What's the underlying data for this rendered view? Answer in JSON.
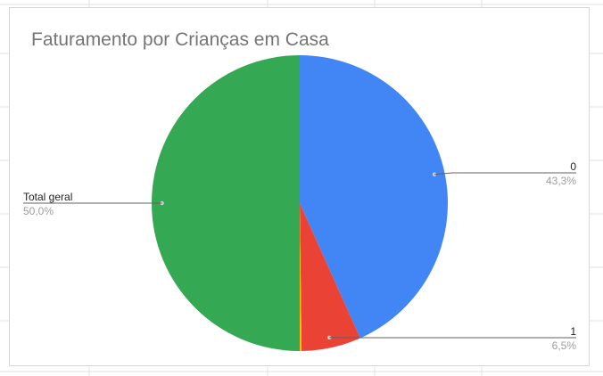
{
  "chart_data": {
    "type": "pie",
    "title": "Faturamento por Crianças em Casa",
    "slices": [
      {
        "label": "0",
        "value": 43.3,
        "display": "43,3%",
        "color": "#4285f4"
      },
      {
        "label": "1",
        "value": 6.5,
        "display": "6,5%",
        "color": "#ea4335"
      },
      {
        "label": "",
        "value": 0.2,
        "display": "",
        "color": "#fbbc04"
      },
      {
        "label": "Total geral",
        "value": 50.0,
        "display": "50,0%",
        "color": "#34a853"
      }
    ],
    "legend": "none",
    "label_placement": "outside with leader lines"
  }
}
